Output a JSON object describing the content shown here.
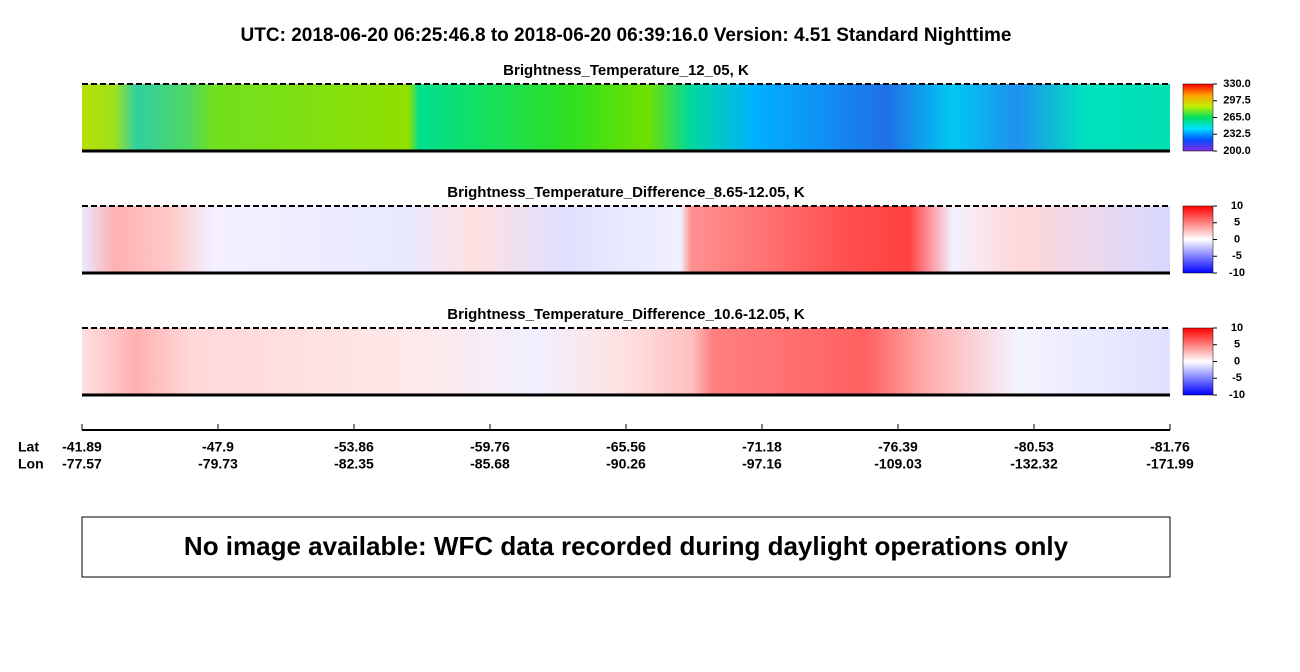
{
  "title": "UTC:  2018-06-20   06:25:46.8  to  2018-06-20   06:39:16.0    Version: 4.51  Standard Nighttime",
  "chart_data": [
    {
      "type": "heatmap",
      "title": "Brightness_Temperature_12_05, K",
      "colorbar": {
        "lim": [
          200,
          330
        ],
        "ticks": [
          {
            "value": 330,
            "label": "330.0"
          },
          297.5,
          {
            "value": 265,
            "label": "265.0"
          },
          232.5,
          {
            "value": 200,
            "label": "200.0"
          }
        ],
        "colors": [
          "#8a2be2",
          "#0050ff",
          "#00e0ff",
          "#00e060",
          "#c0f000",
          "#ffa000",
          "#ff0000"
        ]
      }
    },
    {
      "type": "heatmap",
      "title": "Brightness_Temperature_Difference_8.65-12.05, K",
      "colorbar": {
        "lim": [
          -10,
          10
        ],
        "ticks": [
          10,
          5,
          0,
          -5,
          -10
        ],
        "colors": [
          "#0000ff",
          "#8080ff",
          "#ffffff",
          "#ff8080",
          "#ff0000"
        ]
      }
    },
    {
      "type": "heatmap",
      "title": "Brightness_Temperature_Difference_10.6-12.05, K",
      "colorbar": {
        "lim": [
          -10,
          10
        ],
        "ticks": [
          10,
          5,
          0,
          -5,
          -10
        ],
        "colors": [
          "#0000ff",
          "#8080ff",
          "#ffffff",
          "#ff8080",
          "#ff0000"
        ]
      }
    }
  ],
  "track": {
    "row_labels": [
      "Lat",
      "Lon"
    ],
    "lat": [
      -41.89,
      -47.9,
      -53.86,
      -59.76,
      -65.56,
      -71.18,
      -76.39,
      -80.53,
      -81.76
    ],
    "lon": [
      -77.57,
      -79.73,
      -82.35,
      -85.68,
      -90.26,
      -97.16,
      -109.03,
      -132.32,
      -171.99
    ]
  },
  "notice": "No image available: WFC data recorded during daylight operations only"
}
